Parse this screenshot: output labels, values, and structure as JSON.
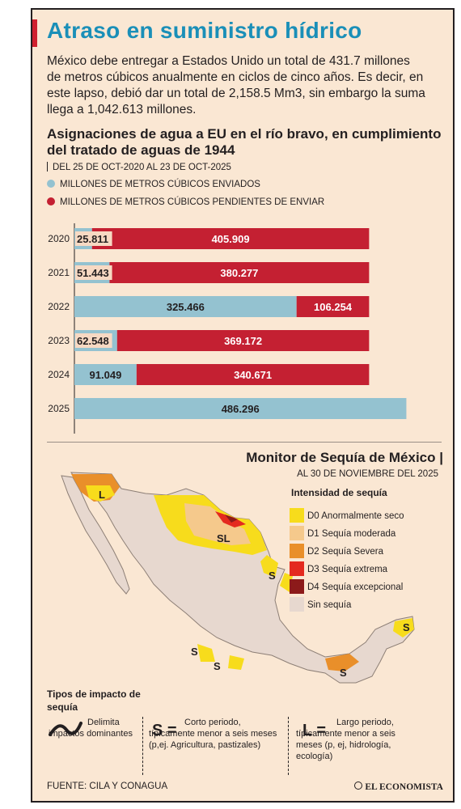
{
  "header": {
    "title": "Atraso en suministro hídrico",
    "intro": "México debe entregar a Estados Unido un total de 431.7 millones de metros cúbicos anualmente en ciclos de cinco años. Es decir, en este lapso, debió dar un total de 2,158.5 Mm3, sin embargo la suma llega a 1,042.613 millones."
  },
  "chart_data": {
    "type": "bar",
    "orientation": "horizontal",
    "stacked": true,
    "title": "Asignaciones de agua a EU en el río bravo, en cumplimiento del tratado de aguas de 1944",
    "subtitle": "DEL 25 DE OCT-2020 AL 23 DE OCT-2025",
    "categories": [
      "2020",
      "2021",
      "2022",
      "2023",
      "2024",
      "2025"
    ],
    "series": [
      {
        "name": "MILLONES DE METROS CÚBICOS ENVIADOS",
        "color": "#94c2d0",
        "values": [
          25.811,
          51.443,
          325.466,
          62.548,
          91.049,
          486.296
        ]
      },
      {
        "name": "MILLONES DE METROS CÚBICOS PENDIENTES DE ENVIAR",
        "color": "#c42032",
        "values": [
          405.909,
          380.277,
          106.254,
          369.172,
          340.671,
          null
        ]
      }
    ],
    "value_labels": {
      "sent": [
        "25.811",
        "51.443",
        "325.466",
        "62.548",
        "91.049",
        "486.296"
      ],
      "pending": [
        "405.909",
        "380.277",
        "106.254",
        "369.172",
        "340.671",
        ""
      ]
    },
    "xlim": [
      0,
      500
    ],
    "grid": false
  },
  "map": {
    "title": "Monitor de Sequía de México |",
    "date": "AL 30 DE NOVIEMBRE DEL 2025",
    "legend_title": "Intensidad de sequía",
    "legend": [
      {
        "label": "D0 Anormalmente seco",
        "color": "#f7dc1c"
      },
      {
        "label": "D1 Sequía moderada",
        "color": "#f5c98c"
      },
      {
        "label": "D2 Sequía Severa",
        "color": "#e98f2a"
      },
      {
        "label": "D3 Sequía extrema",
        "color": "#e42a1f"
      },
      {
        "label": "D4 Sequía excepcional",
        "color": "#8c1a1a"
      },
      {
        "label": "Sin sequía",
        "color": "#e7d8cf"
      }
    ],
    "markers": [
      "L",
      "SL",
      "S",
      "S",
      "S",
      "S",
      "S"
    ]
  },
  "impact": {
    "title": "Tipos de impacto de sequía",
    "delimit_text": "Delimita impactos dominantes",
    "s_key": "S =",
    "s_text": "Corto periodo, típicamente menor a seis meses (p,ej. Agricultura, pastizales)",
    "l_key": "L =",
    "l_text": "Largo periodo, típicamente menor a seis meses (p, ej, hidrología, ecología)"
  },
  "footer": {
    "source": "FUENTE: CILA Y CONAGUA",
    "brand": "EL ECONOMISTA"
  }
}
